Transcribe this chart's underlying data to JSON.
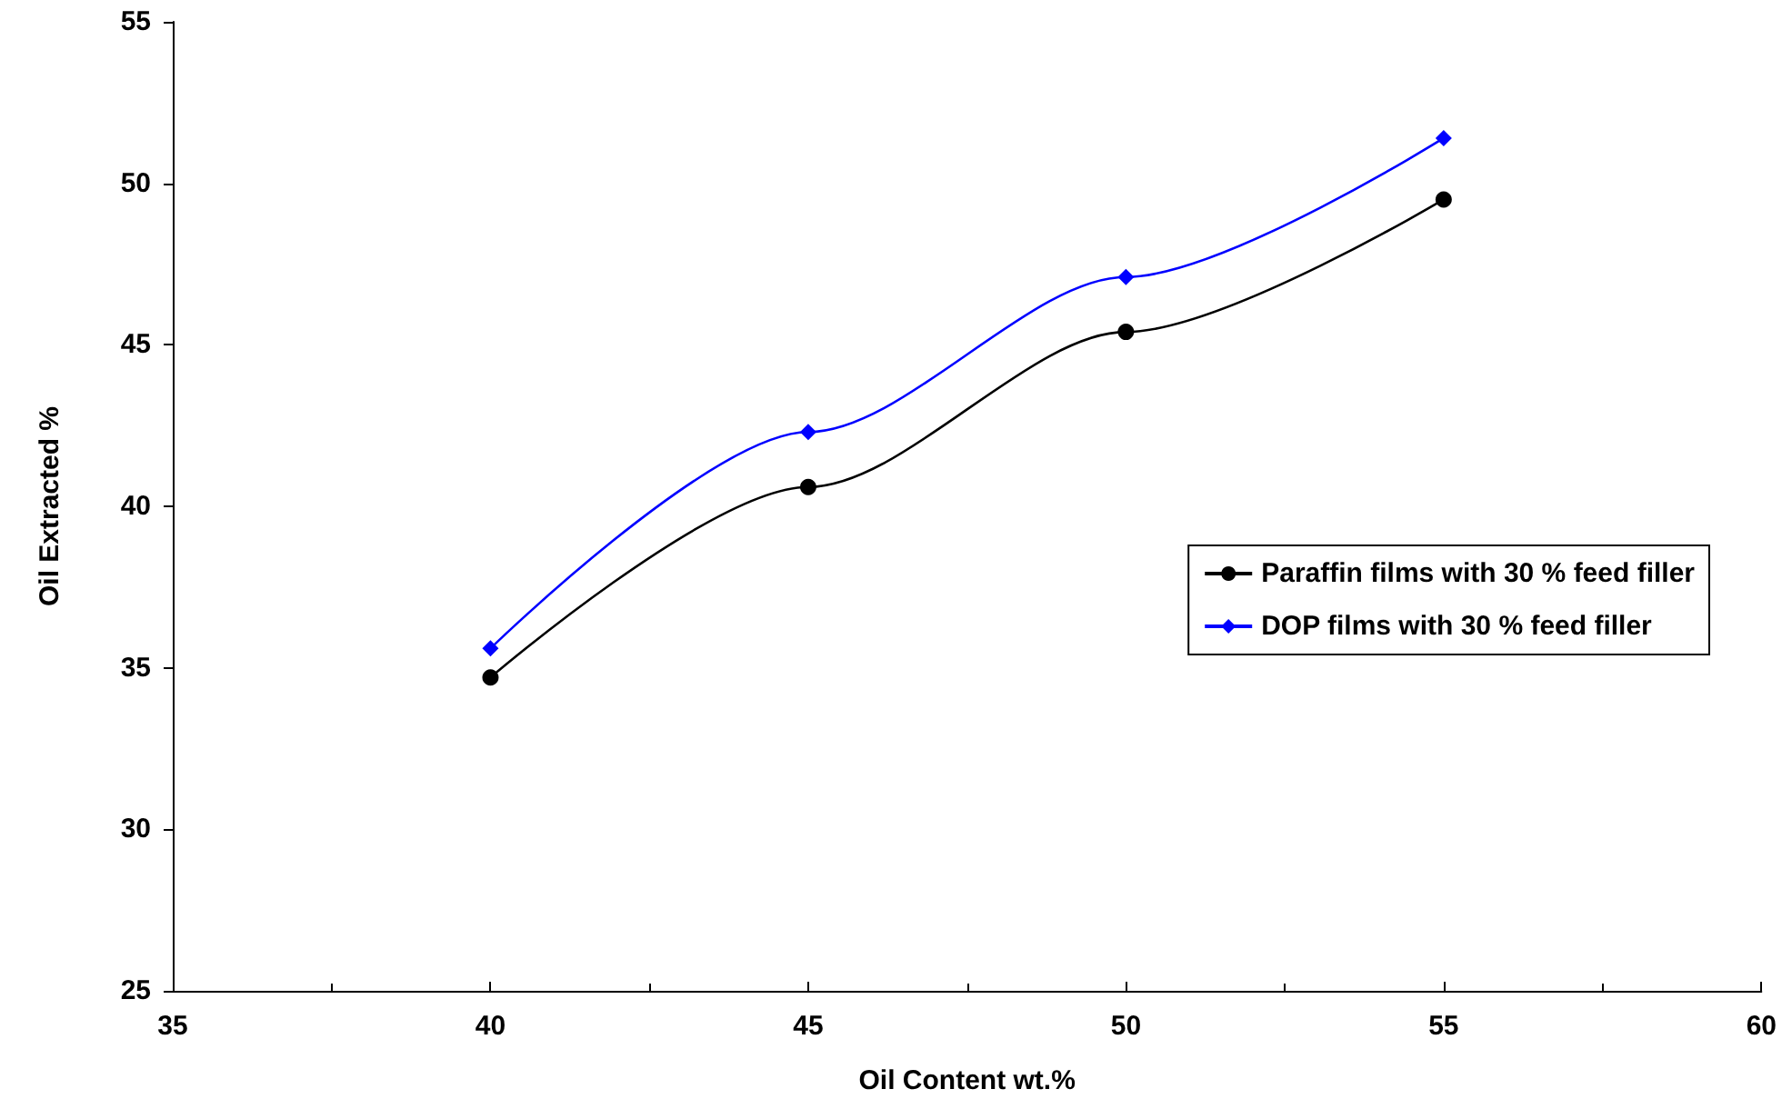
{
  "chart_data": {
    "type": "line",
    "xlabel": "Oil Content wt.%",
    "ylabel": "Oil Extracted %",
    "x": [
      40,
      45,
      50,
      55
    ],
    "series": [
      {
        "name": "Paraffin films with 30 % feed filler",
        "color": "#000000",
        "marker": "circle",
        "values": [
          34.7,
          40.6,
          45.4,
          49.5
        ]
      },
      {
        "name": "DOP films with 30 % feed filler",
        "color": "#0000ff",
        "marker": "diamond",
        "values": [
          35.6,
          42.3,
          47.1,
          51.4
        ]
      }
    ],
    "xlim": [
      35,
      60
    ],
    "xticks": [
      35,
      40,
      45,
      50,
      55,
      60
    ],
    "ylim": [
      25,
      55
    ],
    "yticks": [
      25,
      30,
      35,
      40,
      45,
      50,
      55
    ],
    "grid": false,
    "legend": "right"
  }
}
